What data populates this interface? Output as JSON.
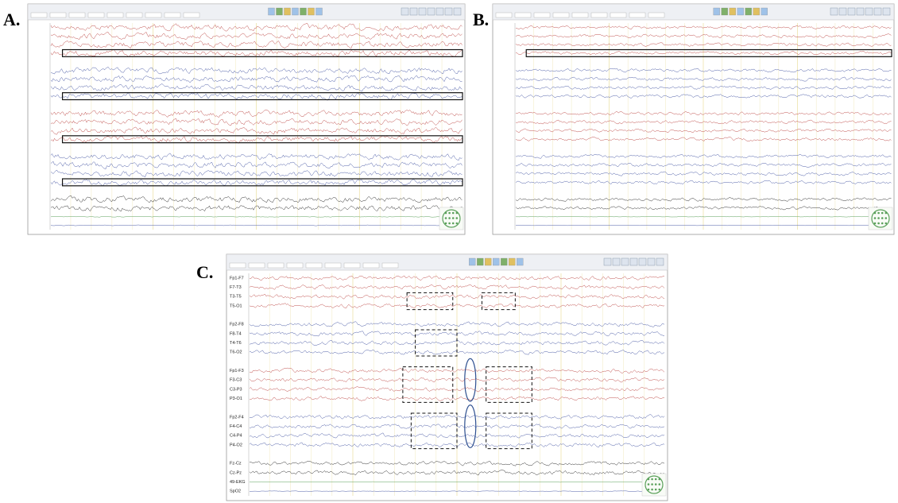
{
  "panels": [
    {
      "label": "A."
    },
    {
      "label": "B."
    },
    {
      "label": "C.",
      "channels": [
        {
          "label": "Fp1-F7",
          "color": "#c0504d"
        },
        {
          "label": "F7-T3",
          "color": "#c0504d"
        },
        {
          "label": "T3-T5",
          "color": "#c0504d"
        },
        {
          "label": "T5-O1",
          "color": "#c0504d"
        },
        {
          "label": "Fp2-F8",
          "color": "#4f5fa8"
        },
        {
          "label": "F8-T4",
          "color": "#4f5fa8"
        },
        {
          "label": "T4-T6",
          "color": "#4f5fa8"
        },
        {
          "label": "T6-O2",
          "color": "#4f5fa8"
        },
        {
          "label": "Fp1-F3",
          "color": "#c0504d"
        },
        {
          "label": "F3-C3",
          "color": "#c0504d"
        },
        {
          "label": "C3-P3",
          "color": "#c0504d"
        },
        {
          "label": "P3-O1",
          "color": "#c0504d"
        },
        {
          "label": "Fp2-F4",
          "color": "#4f5fa8"
        },
        {
          "label": "F4-C4",
          "color": "#4f5fa8"
        },
        {
          "label": "C4-P4",
          "color": "#4f5fa8"
        },
        {
          "label": "P4-O2",
          "color": "#4f5fa8"
        },
        {
          "label": "Fz-Cz",
          "color": "#333333"
        },
        {
          "label": "Cz-Pz",
          "color": "#333333"
        },
        {
          "label": "49-EKG",
          "color": "#5aa05a"
        },
        {
          "label": "SpO2",
          "color": "#4f5fa8"
        }
      ]
    }
  ]
}
